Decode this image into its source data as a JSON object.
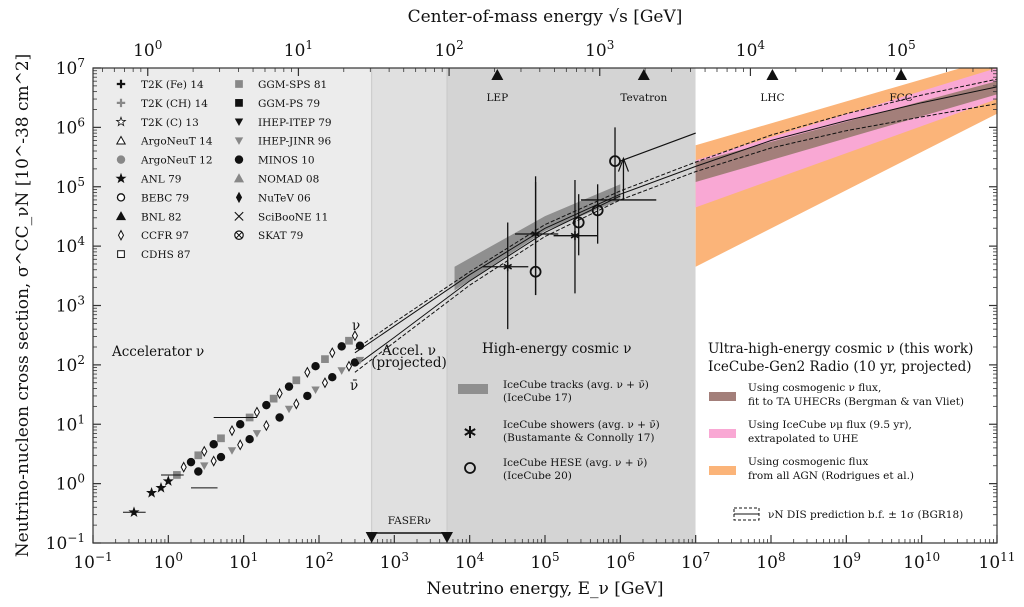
{
  "chart_data": {
    "type": "scatter",
    "title": "",
    "xlabel": "Neutrino energy, E_ν [GeV]",
    "ylabel": "Neutrino-nucleon cross section, σ^CC_νN [10^-38 cm^2]",
    "top_xlabel": "Center-of-mass energy √s [GeV]",
    "xscale": "log",
    "yscale": "log",
    "xlim": [
      0.1,
      100000000000.0
    ],
    "ylim": [
      0.1,
      10000000.0
    ],
    "x_ticks": [
      {
        "exp": "−1",
        "v": -1
      },
      {
        "exp": "0",
        "v": 0
      },
      {
        "exp": "1",
        "v": 1
      },
      {
        "exp": "2",
        "v": 2
      },
      {
        "exp": "3",
        "v": 3
      },
      {
        "exp": "4",
        "v": 4
      },
      {
        "exp": "5",
        "v": 5
      },
      {
        "exp": "6",
        "v": 6
      },
      {
        "exp": "7",
        "v": 7
      },
      {
        "exp": "8",
        "v": 8
      },
      {
        "exp": "9",
        "v": 9
      },
      {
        "exp": "10",
        "v": 10
      },
      {
        "exp": "11",
        "v": 11
      }
    ],
    "y_ticks": [
      {
        "exp": "−1",
        "v": -1
      },
      {
        "exp": "0",
        "v": 0
      },
      {
        "exp": "1",
        "v": 1
      },
      {
        "exp": "2",
        "v": 2
      },
      {
        "exp": "3",
        "v": 3
      },
      {
        "exp": "4",
        "v": 4
      },
      {
        "exp": "5",
        "v": 5
      },
      {
        "exp": "6",
        "v": 6
      },
      {
        "exp": "7",
        "v": 7
      }
    ],
    "top_ticks": [
      {
        "exp": "0",
        "v": 0
      },
      {
        "exp": "1",
        "v": 1
      },
      {
        "exp": "2",
        "v": 2
      },
      {
        "exp": "3",
        "v": 3
      },
      {
        "exp": "4",
        "v": 4
      },
      {
        "exp": "5",
        "v": 5
      }
    ],
    "regions": [
      {
        "name": "Accelerator ν",
        "from": 0.1,
        "to": 500,
        "color": "#ececec"
      },
      {
        "name": "Accel. ν (projected)",
        "from": 500,
        "to": 5000,
        "color": "#e0e0e0"
      },
      {
        "name": "High-energy cosmic ν",
        "from": 5000,
        "to": 10000000.0,
        "color": "#d4d4d4"
      },
      {
        "name": "Ultra-high-energy cosmic ν",
        "from": 10000000.0,
        "to": 100000000000.0,
        "color": "#ffffff"
      }
    ],
    "colliders": [
      {
        "name": "LEP",
        "sqrt_s": 209
      },
      {
        "name": "Tevatron",
        "sqrt_s": 1960
      },
      {
        "name": "LHC",
        "sqrt_s": 14000
      },
      {
        "name": "FCC",
        "sqrt_s": 100000
      }
    ],
    "faser": {
      "label": "FASERν",
      "from": 500,
      "to": 5000
    },
    "nu_label": "ν",
    "nubar_label": "ν̄",
    "accelerator_data": {
      "neutrino": [
        [
          0.35,
          0.33
        ],
        [
          0.6,
          0.7
        ],
        [
          0.8,
          0.85
        ],
        [
          1,
          1.1
        ],
        [
          1.3,
          1.4
        ],
        [
          1.6,
          1.9
        ],
        [
          2,
          2.3
        ],
        [
          2.5,
          3
        ],
        [
          3,
          3.5
        ],
        [
          4,
          4.6
        ],
        [
          5,
          5.8
        ],
        [
          7,
          7.8
        ],
        [
          9,
          10
        ],
        [
          12,
          13
        ],
        [
          15,
          16
        ],
        [
          20,
          21
        ],
        [
          25,
          27
        ],
        [
          30,
          33
        ],
        [
          40,
          43
        ],
        [
          50,
          55
        ],
        [
          70,
          75
        ],
        [
          90,
          95
        ],
        [
          120,
          125
        ],
        [
          150,
          160
        ],
        [
          200,
          205
        ],
        [
          250,
          255
        ],
        [
          300,
          310
        ],
        [
          350,
          210
        ]
      ],
      "antineutrino": [
        [
          2.5,
          1.6
        ],
        [
          3,
          2.0
        ],
        [
          4,
          2.4
        ],
        [
          5,
          2.8
        ],
        [
          7,
          3.6
        ],
        [
          9,
          4.5
        ],
        [
          12,
          5.6
        ],
        [
          15,
          7.0
        ],
        [
          20,
          9.5
        ],
        [
          30,
          13
        ],
        [
          40,
          18
        ],
        [
          50,
          22
        ],
        [
          70,
          30
        ],
        [
          90,
          38
        ],
        [
          120,
          50
        ],
        [
          150,
          62
        ],
        [
          200,
          80
        ],
        [
          250,
          95
        ],
        [
          300,
          110
        ],
        [
          350,
          120
        ]
      ]
    },
    "icecube_tracks_band": {
      "label": "IceCube tracks (avg. ν + ν̄)",
      "ref": "(IceCube 17)",
      "color": "#8f8f8f",
      "lower": [
        [
          6300.0,
          1800
        ],
        [
          100000.0,
          18000
        ],
        [
          1000000.0,
          60000
        ]
      ],
      "upper": [
        [
          6300.0,
          4500
        ],
        [
          100000.0,
          32000
        ],
        [
          1000000.0,
          110000
        ]
      ]
    },
    "icecube_showers": {
      "label": "IceCube showers (avg. ν + ν̄)",
      "ref": "(Bustamante & Connolly 17)",
      "points": [
        {
          "E": 32000.0,
          "sigma": 4500,
          "xlo": 15000.0,
          "xhi": 60000.0,
          "ylo": 400,
          "yhi": 25000
        },
        {
          "E": 75000.0,
          "sigma": 16000,
          "xlo": 40000.0,
          "xhi": 150000.0,
          "ylo": 1500,
          "yhi": 150000
        },
        {
          "E": 250000.0,
          "sigma": 15000,
          "xlo": 130000.0,
          "xhi": 500000.0,
          "ylo": 1600,
          "yhi": 130000
        }
      ]
    },
    "icecube_hese": {
      "label": "IceCube HESE (avg. ν + ν̄)",
      "ref": "(IceCube 20)",
      "points": [
        {
          "E": 75000.0,
          "sigma": 3700,
          "ylo": 1500,
          "yhi": 120000
        },
        {
          "E": 500000.0,
          "sigma": 40000,
          "ylo": 11000,
          "yhi": 110000
        },
        {
          "E": 280000.0,
          "sigma": 25000,
          "ylo": 7000,
          "yhi": 75000
        },
        {
          "E": 850000.0,
          "sigma": 270000,
          "ylo": 60000,
          "yhi": 1000000
        }
      ]
    },
    "bgr18": {
      "label": "νN DIS prediction b.f. ± 1σ (BGR18)",
      "nu_central": [
        [
          300,
          160
        ],
        [
          1000.0,
          450
        ],
        [
          10000.0,
          3300
        ],
        [
          100000.0,
          20000
        ],
        [
          1000000.0,
          75000
        ],
        [
          10000000.0,
          220000
        ],
        [
          100000000.0,
          600000
        ],
        [
          1000000000.0,
          1300000
        ],
        [
          10000000000.0,
          2600000
        ],
        [
          100000000000.0,
          4800000
        ]
      ],
      "nubar_central": [
        [
          300,
          95
        ],
        [
          1000.0,
          290
        ],
        [
          10000.0,
          2600
        ],
        [
          100000.0,
          17000
        ],
        [
          1000000.0,
          70000
        ]
      ],
      "upper": [
        [
          300,
          180
        ],
        [
          1000.0,
          520
        ],
        [
          10000.0,
          3700
        ],
        [
          100000.0,
          23000
        ],
        [
          1000000.0,
          85000
        ],
        [
          10000000.0,
          260000
        ],
        [
          100000000.0,
          740000
        ],
        [
          1000000000.0,
          1700000
        ],
        [
          10000000000.0,
          3500000
        ],
        [
          100000000000.0,
          6500000
        ]
      ],
      "lower": [
        [
          300,
          75
        ],
        [
          1000.0,
          240
        ],
        [
          10000.0,
          2200
        ],
        [
          100000.0,
          14500
        ],
        [
          1000000.0,
          60000
        ],
        [
          10000000.0,
          180000
        ],
        [
          100000000.0,
          450000
        ],
        [
          1000000000.0,
          880000
        ],
        [
          10000000000.0,
          1500000
        ],
        [
          100000000000.0,
          2500000
        ]
      ]
    },
    "uhe_header": [
      "Ultra-high-energy cosmic ν (this work)",
      "IceCube-Gen2 Radio (10 yr, projected)"
    ],
    "uhe_bands": [
      {
        "label1": "Using cosmogenic flux",
        "label2": "from all AGN (Rodrigues et al.)",
        "color": "#fbb479",
        "lower": [
          [
            10000000.0,
            4500
          ],
          [
            100000000000.0,
            1700000
          ]
        ],
        "upper": [
          [
            10000000.0,
            500000
          ],
          [
            100000000000.0,
            15000000
          ]
        ]
      },
      {
        "label1": "Using IceCube νμ flux (9.5 yr),",
        "label2": "extrapolated to UHE",
        "color": "#f9a8d4",
        "lower": [
          [
            10000000.0,
            45000
          ],
          [
            100000000000.0,
            3000000
          ]
        ],
        "upper": [
          [
            10000000.0,
            280000
          ],
          [
            100000000000.0,
            10000000
          ]
        ]
      },
      {
        "label1": "Using cosmogenic ν flux,",
        "label2": "fit to TA UHECRs (Bergman & van Vliet)",
        "color": "#a37f7a",
        "lower": [
          [
            10000000.0,
            120000
          ],
          [
            100000000000.0,
            3600000
          ]
        ],
        "upper": [
          [
            10000000.0,
            260000
          ],
          [
            100000000000.0,
            6000000
          ]
        ]
      }
    ],
    "extrapolated_line": [
      [
        1000000.0,
        270000
      ],
      [
        10000000.0,
        800000
      ]
    ],
    "legend_left_col1": [
      {
        "label": "T2K (Fe) 14",
        "marker": "plus-black"
      },
      {
        "label": "T2K (CH) 14",
        "marker": "plus-gray"
      },
      {
        "label": "T2K (C) 13",
        "marker": "star-open"
      },
      {
        "label": "ArgoNeuT 14",
        "marker": "triangle-open"
      },
      {
        "label": "ArgoNeuT 12",
        "marker": "circle-gray"
      },
      {
        "label": "ANL 79",
        "marker": "star-black"
      },
      {
        "label": "BEBC 79",
        "marker": "circle-open"
      },
      {
        "label": "BNL 82",
        "marker": "triangle-black"
      },
      {
        "label": "CCFR 97",
        "marker": "diamond-open"
      },
      {
        "label": "CDHS 87",
        "marker": "square-open"
      }
    ],
    "legend_left_col2": [
      {
        "label": "GGM-SPS 81",
        "marker": "square-gray"
      },
      {
        "label": "GGM-PS 79",
        "marker": "square-black"
      },
      {
        "label": "IHEP-ITEP 79",
        "marker": "tridown-black"
      },
      {
        "label": "IHEP-JINR 96",
        "marker": "tridown-gray"
      },
      {
        "label": "MINOS 10",
        "marker": "circle-black"
      },
      {
        "label": "NOMAD 08",
        "marker": "triangle-gray"
      },
      {
        "label": "NuTeV 06",
        "marker": "diamond-black"
      },
      {
        "label": "SciBooNE 11",
        "marker": "x-black"
      },
      {
        "label": "SKAT 79",
        "marker": "otimes-black"
      }
    ]
  }
}
